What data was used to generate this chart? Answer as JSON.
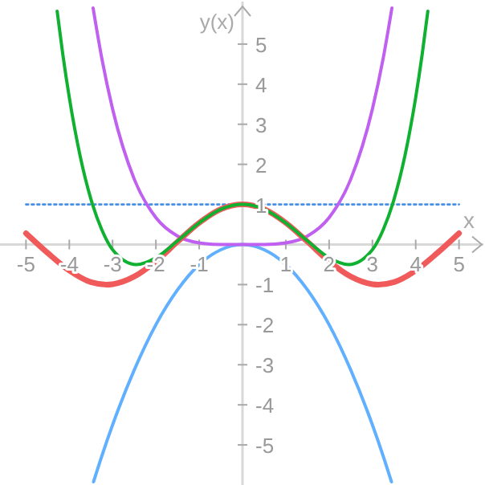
{
  "chart_data": {
    "type": "line",
    "xlabel": "x",
    "ylabel": "y(x)",
    "xlim": [
      -5.6,
      5.6
    ],
    "ylim": [
      -6,
      6.1
    ],
    "xticks": [
      -5,
      -4,
      -3,
      -2,
      -1,
      1,
      2,
      3,
      4,
      5
    ],
    "yticks": [
      -5,
      -4,
      -3,
      -2,
      -1,
      1,
      2,
      3,
      4,
      5
    ],
    "grid": false,
    "marker": "none",
    "series": [
      {
        "color": "#4a90e2",
        "line_style": "dotted",
        "x": [
          -5,
          5
        ],
        "values": [
          1,
          1
        ]
      },
      {
        "color": "#60b0ff",
        "x": [
          -3.44,
          -3.25,
          -3,
          -2.5,
          -2,
          -1.5,
          -1,
          -0.5,
          0,
          0.5,
          1,
          1.5,
          2,
          2.5,
          3,
          3.25,
          3.44
        ],
        "values": [
          -5.92,
          -5.28,
          -4.5,
          -3.13,
          -2,
          -1.13,
          -0.5,
          -0.13,
          0,
          -0.13,
          -0.5,
          -1.13,
          -2,
          -3.13,
          -4.5,
          -5.28,
          -5.92
        ]
      },
      {
        "color": "#c060f0",
        "x": [
          -3.45,
          -3.25,
          -3,
          -2.5,
          -2,
          -1.5,
          -1,
          -0.5,
          0,
          0.5,
          1,
          1.5,
          2,
          2.5,
          3,
          3.25,
          3.45
        ],
        "values": [
          5.9,
          4.65,
          3.38,
          1.63,
          0.67,
          0.21,
          0.04,
          0,
          0,
          0,
          0.04,
          0.21,
          0.67,
          1.63,
          3.38,
          4.65,
          5.9
        ]
      },
      {
        "color": "#f05a5a",
        "x": [
          -5,
          -4.5,
          -4,
          -3.5,
          -3.14,
          -3,
          -2.5,
          -2,
          -1.5,
          -1,
          -0.5,
          0,
          0.5,
          1,
          1.5,
          2,
          2.5,
          3,
          3.14,
          3.5,
          4,
          4.5,
          5
        ],
        "values": [
          0.28,
          -0.21,
          -0.65,
          -0.94,
          -1,
          -0.99,
          -0.8,
          -0.42,
          0.07,
          0.54,
          0.88,
          1,
          0.88,
          0.54,
          0.07,
          -0.42,
          -0.8,
          -0.99,
          -1,
          -0.94,
          -0.65,
          -0.21,
          0.28
        ]
      },
      {
        "color": "#10b030",
        "x": [
          -4.28,
          -4.15,
          -4,
          -3.75,
          -3.5,
          -3.25,
          -3,
          -2.45,
          -2,
          -1.5,
          -1,
          -0.5,
          0,
          0.5,
          1,
          1.5,
          2,
          2.45,
          3,
          3.25,
          3.5,
          3.75,
          4,
          4.15,
          4.28
        ],
        "values": [
          5.82,
          4.75,
          3.67,
          2.21,
          1.13,
          0.37,
          -0.13,
          -0.5,
          -0.33,
          0.09,
          0.54,
          0.88,
          1,
          0.88,
          0.54,
          0.09,
          -0.33,
          -0.5,
          -0.13,
          0.37,
          1.13,
          2.21,
          3.67,
          4.75,
          5.82
        ]
      }
    ]
  }
}
